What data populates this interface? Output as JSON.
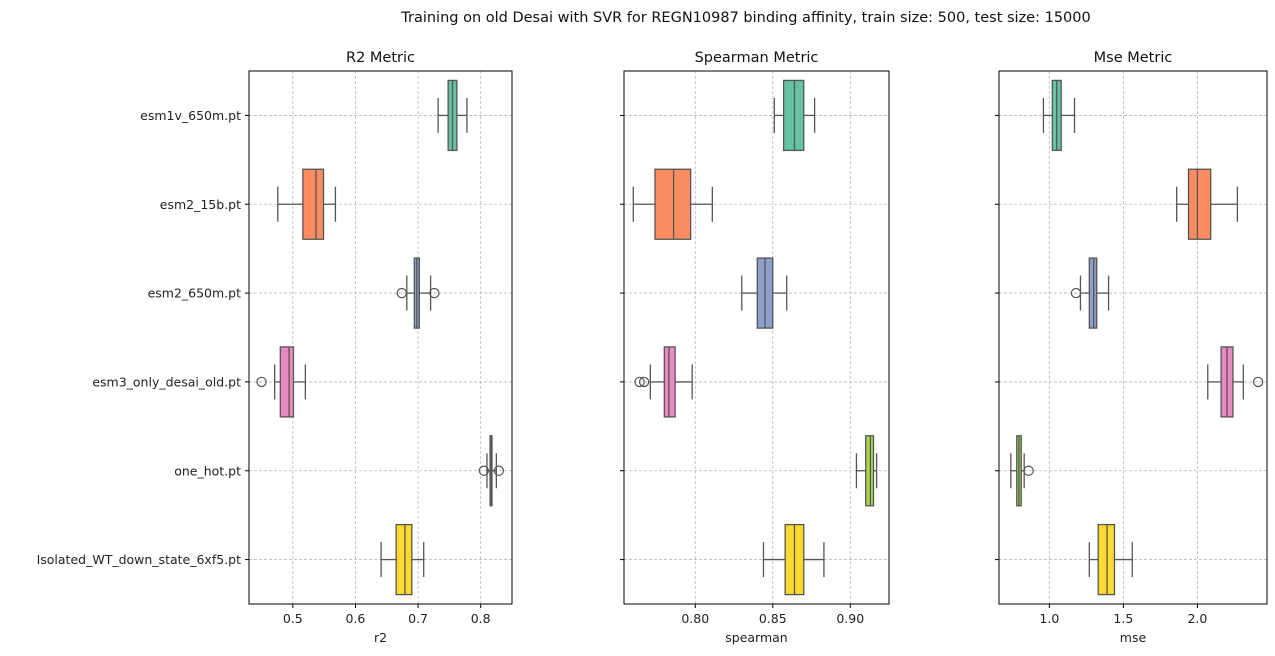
{
  "figure": {
    "title": "Training on old Desai with SVR for REGN10987 binding affinity, train size: 500, test size: 15000"
  },
  "chart_data": [
    {
      "type": "box",
      "title": "R2 Metric",
      "xlabel": "r2",
      "ylabel": "",
      "xlim": [
        0.43,
        0.85
      ],
      "xticks": [
        0.5,
        0.6,
        0.7,
        0.8
      ],
      "xtick_labels": [
        "0.5",
        "0.6",
        "0.7",
        "0.8"
      ],
      "categories": [
        "esm1v_650m.pt",
        "esm2_15b.pt",
        "esm2_650m.pt",
        "esm3_only_desai_old.pt",
        "one_hot.pt",
        "Isolated_WT_down_state_6xf5.pt"
      ],
      "boxes": [
        {
          "whislo": 0.732,
          "q1": 0.748,
          "med": 0.755,
          "q3": 0.762,
          "whishi": 0.778,
          "fliers": []
        },
        {
          "whislo": 0.476,
          "q1": 0.516,
          "med": 0.537,
          "q3": 0.549,
          "whishi": 0.568,
          "fliers": []
        },
        {
          "whislo": 0.682,
          "q1": 0.694,
          "med": 0.698,
          "q3": 0.702,
          "whishi": 0.72,
          "fliers": [
            0.674,
            0.726
          ]
        },
        {
          "whislo": 0.471,
          "q1": 0.48,
          "med": 0.494,
          "q3": 0.501,
          "whishi": 0.52,
          "fliers": [
            0.45
          ]
        },
        {
          "whislo": 0.81,
          "q1": 0.815,
          "med": 0.817,
          "q3": 0.818,
          "whishi": 0.825,
          "fliers": [
            0.805,
            0.829
          ]
        },
        {
          "whislo": 0.641,
          "q1": 0.665,
          "med": 0.679,
          "q3": 0.69,
          "whishi": 0.709,
          "fliers": []
        }
      ]
    },
    {
      "type": "box",
      "title": "Spearman Metric",
      "xlabel": "spearman",
      "ylabel": "",
      "xlim": [
        0.754,
        0.925
      ],
      "xticks": [
        0.8,
        0.85,
        0.9
      ],
      "xtick_labels": [
        "0.80",
        "0.85",
        "0.90"
      ],
      "categories": [
        "esm1v_650m.pt",
        "esm2_15b.pt",
        "esm2_650m.pt",
        "esm3_only_desai_old.pt",
        "one_hot.pt",
        "Isolated_WT_down_state_6xf5.pt"
      ],
      "boxes": [
        {
          "whislo": 0.851,
          "q1": 0.857,
          "med": 0.864,
          "q3": 0.87,
          "whishi": 0.877,
          "fliers": []
        },
        {
          "whislo": 0.76,
          "q1": 0.774,
          "med": 0.786,
          "q3": 0.797,
          "whishi": 0.811,
          "fliers": []
        },
        {
          "whislo": 0.83,
          "q1": 0.84,
          "med": 0.845,
          "q3": 0.85,
          "whishi": 0.859,
          "fliers": []
        },
        {
          "whislo": 0.771,
          "q1": 0.78,
          "med": 0.783,
          "q3": 0.787,
          "whishi": 0.798,
          "fliers": [
            0.764,
            0.767
          ]
        },
        {
          "whislo": 0.904,
          "q1": 0.91,
          "med": 0.913,
          "q3": 0.915,
          "whishi": 0.917,
          "fliers": []
        },
        {
          "whislo": 0.844,
          "q1": 0.858,
          "med": 0.864,
          "q3": 0.87,
          "whishi": 0.883,
          "fliers": []
        }
      ]
    },
    {
      "type": "box",
      "title": "Mse Metric",
      "xlabel": "mse",
      "ylabel": "",
      "xlim": [
        0.66,
        2.47
      ],
      "xticks": [
        1.0,
        1.5,
        2.0
      ],
      "xtick_labels": [
        "1.0",
        "1.5",
        "2.0"
      ],
      "categories": [
        "esm1v_650m.pt",
        "esm2_15b.pt",
        "esm2_650m.pt",
        "esm3_only_desai_old.pt",
        "one_hot.pt",
        "Isolated_WT_down_state_6xf5.pt"
      ],
      "boxes": [
        {
          "whislo": 0.96,
          "q1": 1.02,
          "med": 1.05,
          "q3": 1.08,
          "whishi": 1.17,
          "fliers": []
        },
        {
          "whislo": 1.86,
          "q1": 1.94,
          "med": 2.0,
          "q3": 2.09,
          "whishi": 2.27,
          "fliers": []
        },
        {
          "whislo": 1.21,
          "q1": 1.27,
          "med": 1.3,
          "q3": 1.32,
          "whishi": 1.4,
          "fliers": [
            1.18
          ]
        },
        {
          "whislo": 2.07,
          "q1": 2.16,
          "med": 2.2,
          "q3": 2.24,
          "whishi": 2.31,
          "fliers": [
            2.41
          ]
        },
        {
          "whislo": 0.74,
          "q1": 0.78,
          "med": 0.795,
          "q3": 0.81,
          "whishi": 0.83,
          "fliers": [
            0.86
          ]
        },
        {
          "whislo": 1.27,
          "q1": 1.33,
          "med": 1.39,
          "q3": 1.44,
          "whishi": 1.56,
          "fliers": []
        }
      ]
    }
  ],
  "colors": [
    "#66c2a5",
    "#fc8d62",
    "#8da0cb",
    "#e78ac3",
    "#a6d854",
    "#ffd92f"
  ],
  "grid": true,
  "legend": "none"
}
